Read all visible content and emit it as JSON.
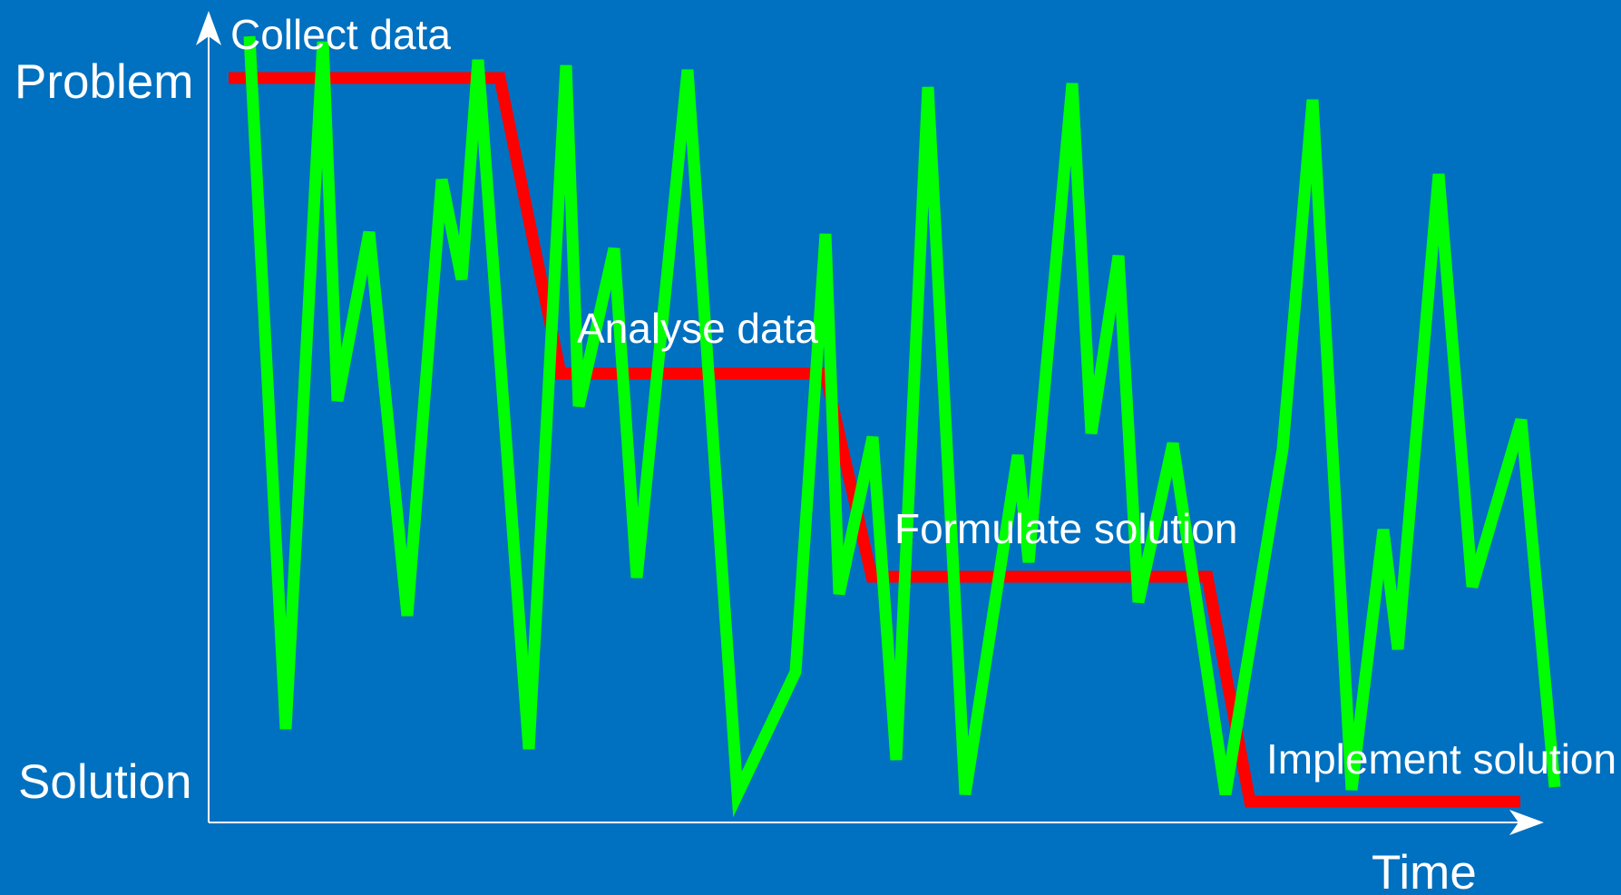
{
  "colors": {
    "background": "#0070c0",
    "axis": "#ffffff",
    "structured_process": "#ff0000",
    "actual_process": "#00ff00",
    "text": "#ffffff"
  },
  "axes": {
    "y_top_label": "Problem",
    "y_bottom_label": "Solution",
    "x_label": "Time"
  },
  "phases": [
    {
      "label": "Collect data"
    },
    {
      "label": "Analyse data"
    },
    {
      "label": "Formulate solution"
    },
    {
      "label": "Implement solution"
    }
  ]
}
